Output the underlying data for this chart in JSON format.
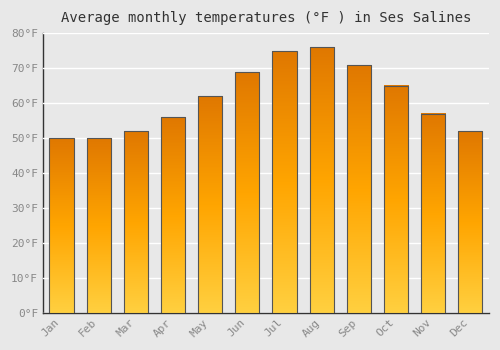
{
  "title": "Average monthly temperatures (°F ) in Ses Salines",
  "months": [
    "Jan",
    "Feb",
    "Mar",
    "Apr",
    "May",
    "Jun",
    "Jul",
    "Aug",
    "Sep",
    "Oct",
    "Nov",
    "Dec"
  ],
  "values": [
    50,
    50,
    52,
    56,
    62,
    69,
    75,
    76,
    71,
    65,
    57,
    52
  ],
  "bar_color_dark": "#E07800",
  "bar_color_mid": "#FFA500",
  "bar_color_light": "#FFD040",
  "ylim": [
    0,
    80
  ],
  "yticks": [
    0,
    10,
    20,
    30,
    40,
    50,
    60,
    70,
    80
  ],
  "ytick_labels": [
    "0°F",
    "10°F",
    "20°F",
    "30°F",
    "40°F",
    "50°F",
    "60°F",
    "70°F",
    "80°F"
  ],
  "background_color": "#e8e8e8",
  "grid_color": "#ffffff",
  "title_fontsize": 10,
  "tick_fontsize": 8,
  "tick_color": "#888888",
  "spine_color": "#333333"
}
